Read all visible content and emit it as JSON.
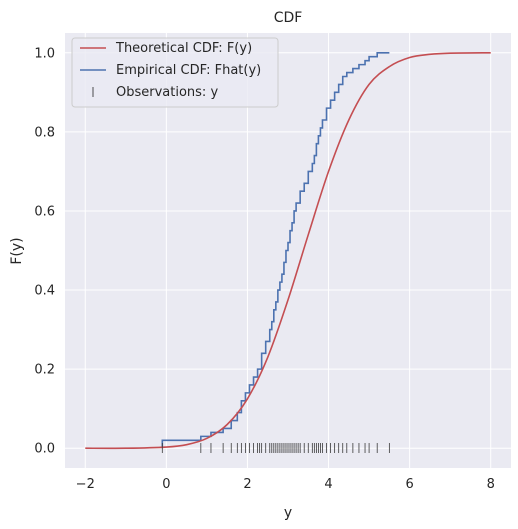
{
  "chart_data": {
    "type": "line",
    "title": "CDF",
    "xlabel": "y",
    "ylabel": "F(y)",
    "xlim": [
      -2.5,
      8.5
    ],
    "ylim": [
      -0.05,
      1.05
    ],
    "xticks": [
      -2,
      0,
      2,
      4,
      6,
      8
    ],
    "xtick_labels": [
      "−2",
      "0",
      "2",
      "4",
      "6",
      "8"
    ],
    "yticks": [
      0.0,
      0.2,
      0.4,
      0.6,
      0.8,
      1.0
    ],
    "ytick_labels": [
      "0.0",
      "0.2",
      "0.4",
      "0.6",
      "0.8",
      "1.0"
    ],
    "grid": true,
    "legend_position": "top-left",
    "colors": {
      "background": "#eaeaf2",
      "grid": "#ffffff",
      "theoretical": "#c44e52",
      "empirical": "#4c72b0",
      "observations": "#3a3a3a"
    },
    "series": [
      {
        "name": "Theoretical CDF: F(y)",
        "kind": "line",
        "x": [
          -2.0,
          -1.0,
          0.0,
          0.5,
          1.0,
          1.5,
          2.0,
          2.5,
          3.0,
          3.5,
          4.0,
          4.5,
          5.0,
          5.5,
          6.0,
          6.5,
          7.0,
          8.0
        ],
        "y": [
          0.0,
          0.0,
          0.003,
          0.009,
          0.025,
          0.06,
          0.125,
          0.23,
          0.375,
          0.54,
          0.7,
          0.83,
          0.92,
          0.965,
          0.988,
          0.996,
          0.999,
          1.0
        ]
      },
      {
        "name": "Empirical CDF: Fhat(y)",
        "kind": "step",
        "x": [
          -0.1,
          0.85,
          1.1,
          1.4,
          1.6,
          1.75,
          1.85,
          1.95,
          2.05,
          2.15,
          2.25,
          2.35,
          2.45,
          2.55,
          2.6,
          2.65,
          2.7,
          2.75,
          2.8,
          2.85,
          2.9,
          2.95,
          3.0,
          3.05,
          3.1,
          3.15,
          3.2,
          3.3,
          3.4,
          3.5,
          3.6,
          3.65,
          3.7,
          3.75,
          3.8,
          3.85,
          3.95,
          4.05,
          4.15,
          4.25,
          4.35,
          4.45,
          4.6,
          4.75,
          4.9,
          5.0,
          5.2,
          5.5
        ],
        "y": [
          0.02,
          0.03,
          0.04,
          0.05,
          0.07,
          0.09,
          0.12,
          0.14,
          0.16,
          0.18,
          0.2,
          0.24,
          0.27,
          0.3,
          0.32,
          0.35,
          0.37,
          0.4,
          0.42,
          0.44,
          0.47,
          0.5,
          0.52,
          0.55,
          0.57,
          0.6,
          0.62,
          0.65,
          0.67,
          0.7,
          0.72,
          0.74,
          0.77,
          0.79,
          0.81,
          0.83,
          0.86,
          0.88,
          0.9,
          0.92,
          0.94,
          0.95,
          0.96,
          0.97,
          0.98,
          0.99,
          1.0,
          1.0
        ]
      },
      {
        "name": "Observations: y",
        "kind": "rug",
        "x": [
          -0.1,
          0.85,
          1.1,
          1.4,
          1.6,
          1.75,
          1.85,
          1.95,
          2.05,
          2.15,
          2.25,
          2.3,
          2.35,
          2.45,
          2.55,
          2.6,
          2.65,
          2.7,
          2.75,
          2.8,
          2.85,
          2.9,
          2.95,
          3.0,
          3.05,
          3.1,
          3.15,
          3.2,
          3.25,
          3.3,
          3.4,
          3.5,
          3.6,
          3.65,
          3.7,
          3.75,
          3.8,
          3.85,
          3.95,
          4.05,
          4.15,
          4.25,
          4.35,
          4.45,
          4.6,
          4.75,
          4.9,
          5.0,
          5.2,
          5.5
        ]
      }
    ]
  }
}
